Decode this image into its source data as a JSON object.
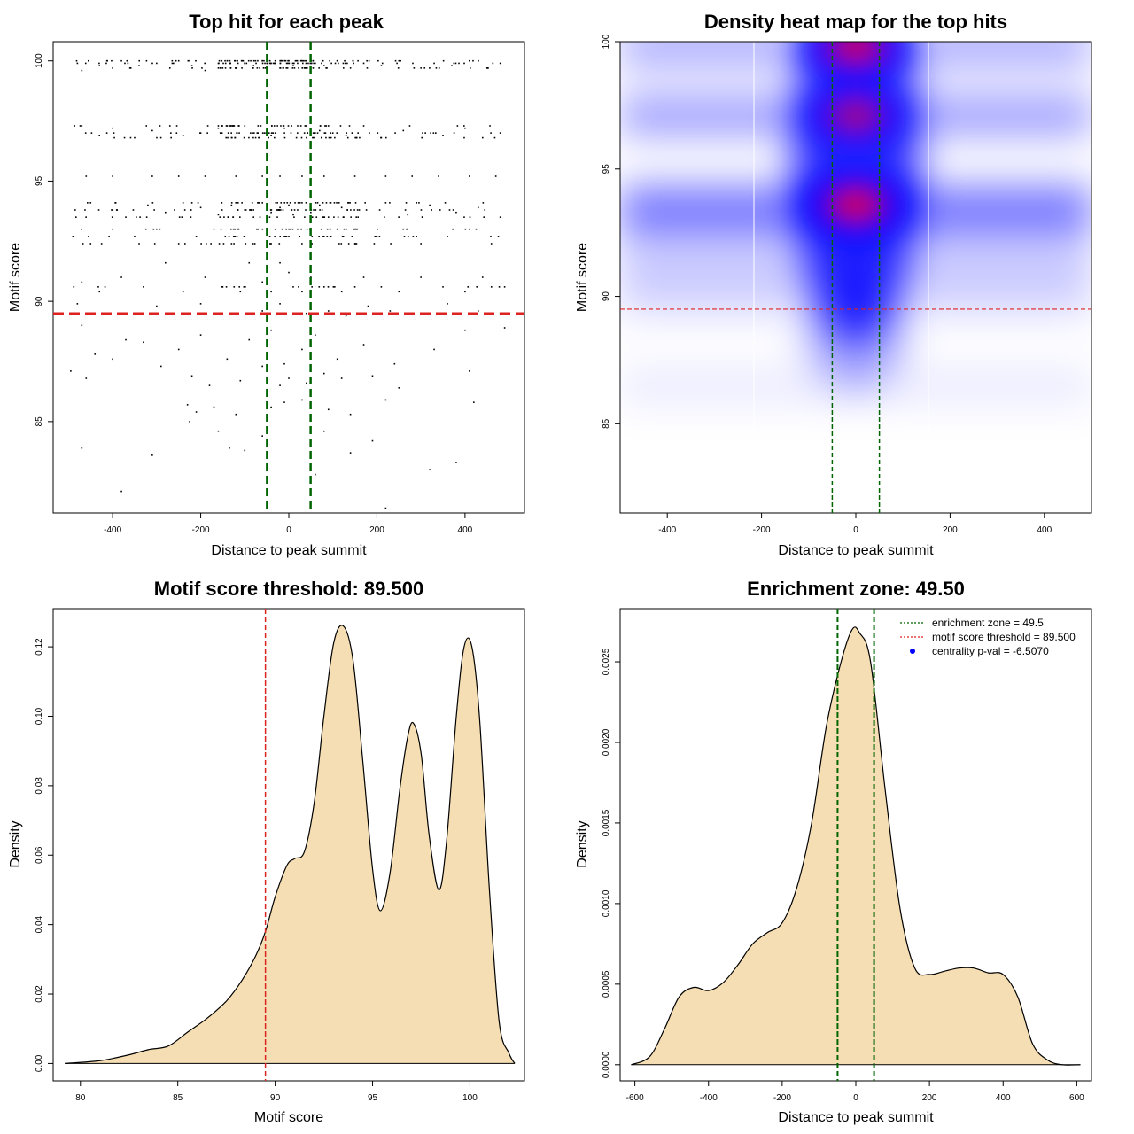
{
  "colors": {
    "green": "#006400",
    "red": "#dd2222",
    "fill": "#f5deb3",
    "points": "#000000",
    "heat_low": "#ffffff",
    "heat_mid": "#0000ff",
    "heat_high": "#ff0000"
  },
  "chart_data": [
    {
      "type": "scatter",
      "title": "Top hit for each peak",
      "xlabel": "Distance to peak summit",
      "ylabel": "Motif score",
      "xlim": [
        -535,
        535
      ],
      "ylim": [
        81.2,
        100.8
      ],
      "xticks": [
        -400,
        -200,
        0,
        200,
        400
      ],
      "xtick_labels": [
        "-400",
        "-200",
        "0",
        "200",
        "400"
      ],
      "yticks": [
        85,
        90,
        95,
        100
      ],
      "ytick_labels": [
        "85",
        "90",
        "95",
        "100"
      ],
      "score_levels": [
        100.0,
        99.7,
        99.9,
        97.3,
        97.0,
        96.8,
        95.2,
        94.1,
        93.8,
        93.5,
        93.0,
        92.7,
        92.4,
        91.6,
        91.0,
        90.6,
        90.4,
        89.9
      ],
      "points": [
        [
          -480,
          99.9
        ],
        [
          -470,
          99.6
        ],
        [
          -455,
          100.0
        ],
        [
          -430,
          99.8
        ],
        [
          -400,
          99.7
        ],
        [
          -380,
          100.0
        ],
        [
          -340,
          99.8
        ],
        [
          -300,
          99.9
        ],
        [
          -270,
          99.7
        ],
        [
          -250,
          100.0
        ],
        [
          -220,
          99.8
        ],
        [
          -190,
          99.6
        ],
        [
          -160,
          99.9
        ],
        [
          -140,
          100.0
        ],
        [
          -120,
          99.7
        ],
        [
          -100,
          99.9
        ],
        [
          -80,
          99.8
        ],
        [
          -60,
          100.0
        ],
        [
          -40,
          99.9
        ],
        [
          -20,
          99.7
        ],
        [
          0,
          100.0
        ],
        [
          10,
          99.8
        ],
        [
          20,
          99.9
        ],
        [
          30,
          100.0
        ],
        [
          40,
          99.7
        ],
        [
          60,
          99.9
        ],
        [
          80,
          99.8
        ],
        [
          110,
          100.0
        ],
        [
          140,
          99.7
        ],
        [
          170,
          99.9
        ],
        [
          210,
          99.8
        ],
        [
          250,
          100.0
        ],
        [
          300,
          99.7
        ],
        [
          330,
          99.9
        ],
        [
          370,
          99.8
        ],
        [
          410,
          100.0
        ],
        [
          450,
          99.7
        ],
        [
          480,
          99.9
        ],
        [
          -470,
          97.3
        ],
        [
          -430,
          96.9
        ],
        [
          -400,
          97.2
        ],
        [
          -350,
          96.8
        ],
        [
          -310,
          97.1
        ],
        [
          -270,
          97.3
        ],
        [
          -240,
          96.9
        ],
        [
          -200,
          97.0
        ],
        [
          -160,
          97.2
        ],
        [
          -130,
          96.8
        ],
        [
          -100,
          97.3
        ],
        [
          -70,
          97.0
        ],
        [
          -40,
          96.9
        ],
        [
          -10,
          97.2
        ],
        [
          20,
          97.3
        ],
        [
          40,
          96.8
        ],
        [
          70,
          97.1
        ],
        [
          100,
          97.0
        ],
        [
          130,
          96.9
        ],
        [
          170,
          97.3
        ],
        [
          210,
          96.8
        ],
        [
          260,
          97.1
        ],
        [
          310,
          97.0
        ],
        [
          350,
          96.9
        ],
        [
          400,
          97.2
        ],
        [
          440,
          96.8
        ],
        [
          480,
          97.0
        ],
        [
          -460,
          95.2
        ],
        [
          -400,
          95.2
        ],
        [
          -310,
          95.2
        ],
        [
          -250,
          95.2
        ],
        [
          -190,
          95.2
        ],
        [
          -120,
          95.2
        ],
        [
          -60,
          95.2
        ],
        [
          -20,
          95.2
        ],
        [
          30,
          95.2
        ],
        [
          80,
          95.2
        ],
        [
          150,
          95.2
        ],
        [
          220,
          95.2
        ],
        [
          280,
          95.2
        ],
        [
          340,
          95.2
        ],
        [
          410,
          95.2
        ],
        [
          470,
          95.2
        ],
        [
          -450,
          94.1
        ],
        [
          -400,
          93.8
        ],
        [
          -370,
          93.5
        ],
        [
          -320,
          94.0
        ],
        [
          -280,
          93.7
        ],
        [
          -240,
          94.1
        ],
        [
          -200,
          93.9
        ],
        [
          -160,
          93.6
        ],
        [
          -130,
          94.0
        ],
        [
          -100,
          93.8
        ],
        [
          -80,
          93.5
        ],
        [
          -60,
          94.1
        ],
        [
          -40,
          93.7
        ],
        [
          -20,
          93.9
        ],
        [
          0,
          94.0
        ],
        [
          10,
          93.6
        ],
        [
          20,
          93.8
        ],
        [
          30,
          94.1
        ],
        [
          50,
          93.7
        ],
        [
          70,
          94.0
        ],
        [
          90,
          93.5
        ],
        [
          120,
          93.9
        ],
        [
          160,
          93.8
        ],
        [
          220,
          94.1
        ],
        [
          270,
          93.6
        ],
        [
          320,
          94.0
        ],
        [
          380,
          93.7
        ],
        [
          430,
          93.9
        ],
        [
          480,
          93.5
        ],
        [
          -490,
          92.7
        ],
        [
          -450,
          92.4
        ],
        [
          -400,
          93.0
        ],
        [
          -350,
          92.7
        ],
        [
          -300,
          93.0
        ],
        [
          -250,
          92.4
        ],
        [
          -210,
          92.7
        ],
        [
          -170,
          93.0
        ],
        [
          -130,
          92.4
        ],
        [
          -100,
          92.7
        ],
        [
          -70,
          93.0
        ],
        [
          -40,
          92.4
        ],
        [
          -10,
          92.7
        ],
        [
          20,
          93.0
        ],
        [
          50,
          92.4
        ],
        [
          80,
          92.7
        ],
        [
          110,
          93.0
        ],
        [
          150,
          92.4
        ],
        [
          200,
          92.7
        ],
        [
          260,
          93.0
        ],
        [
          300,
          92.4
        ],
        [
          360,
          92.7
        ],
        [
          410,
          93.0
        ],
        [
          460,
          92.4
        ],
        [
          -470,
          90.8
        ],
        [
          -430,
          90.4
        ],
        [
          -380,
          91.0
        ],
        [
          -330,
          90.6
        ],
        [
          -280,
          91.6
        ],
        [
          -240,
          90.4
        ],
        [
          -190,
          91.0
        ],
        [
          -150,
          90.6
        ],
        [
          -110,
          90.4
        ],
        [
          -90,
          91.6
        ],
        [
          -60,
          90.8
        ],
        [
          -40,
          90.4
        ],
        [
          -20,
          91.6
        ],
        [
          0,
          91.2
        ],
        [
          10,
          90.6
        ],
        [
          30,
          90.4
        ],
        [
          50,
          91.0
        ],
        [
          80,
          90.6
        ],
        [
          120,
          90.4
        ],
        [
          170,
          91.0
        ],
        [
          210,
          90.6
        ],
        [
          250,
          90.4
        ],
        [
          300,
          91.0
        ],
        [
          350,
          90.6
        ],
        [
          400,
          90.4
        ],
        [
          440,
          91.0
        ],
        [
          490,
          90.6
        ],
        [
          -480,
          89.9
        ],
        [
          -440,
          89.5
        ],
        [
          -300,
          89.8
        ],
        [
          -200,
          89.9
        ],
        [
          -120,
          89.5
        ],
        [
          -60,
          89.6
        ],
        [
          -20,
          89.9
        ],
        [
          40,
          89.5
        ],
        [
          90,
          89.6
        ],
        [
          130,
          89.4
        ],
        [
          180,
          89.8
        ],
        [
          230,
          89.6
        ],
        [
          280,
          89.5
        ],
        [
          360,
          89.9
        ],
        [
          430,
          89.6
        ],
        [
          480,
          89.5
        ],
        [
          -470,
          89.0
        ],
        [
          -440,
          87.8
        ],
        [
          -330,
          88.3
        ],
        [
          -250,
          88.0
        ],
        [
          -200,
          88.6
        ],
        [
          -140,
          87.6
        ],
        [
          -90,
          88.4
        ],
        [
          -40,
          88.8
        ],
        [
          -10,
          87.4
        ],
        [
          30,
          88.0
        ],
        [
          60,
          88.6
        ],
        [
          110,
          87.6
        ],
        [
          170,
          88.2
        ],
        [
          240,
          87.4
        ],
        [
          330,
          88.0
        ],
        [
          400,
          88.8
        ],
        [
          490,
          88.9
        ],
        [
          -495,
          87.1
        ],
        [
          -460,
          86.8
        ],
        [
          -400,
          87.6
        ],
        [
          -370,
          88.4
        ],
        [
          -290,
          87.3
        ],
        [
          -220,
          86.9
        ],
        [
          -180,
          86.5
        ],
        [
          -110,
          86.7
        ],
        [
          -60,
          87.3
        ],
        [
          -20,
          86.5
        ],
        [
          0,
          86.8
        ],
        [
          40,
          86.6
        ],
        [
          80,
          87.0
        ],
        [
          120,
          86.8
        ],
        [
          190,
          86.9
        ],
        [
          250,
          86.4
        ],
        [
          410,
          87.1
        ],
        [
          -230,
          85.7
        ],
        [
          -210,
          85.4
        ],
        [
          -170,
          85.6
        ],
        [
          -120,
          85.3
        ],
        [
          -40,
          85.6
        ],
        [
          -10,
          85.8
        ],
        [
          30,
          85.9
        ],
        [
          90,
          85.5
        ],
        [
          140,
          85.3
        ],
        [
          220,
          85.9
        ],
        [
          420,
          85.8
        ],
        [
          -225,
          85.0
        ],
        [
          -160,
          84.6
        ],
        [
          -60,
          84.4
        ],
        [
          80,
          84.6
        ],
        [
          190,
          84.2
        ],
        [
          -470,
          83.9
        ],
        [
          -135,
          83.9
        ],
        [
          -100,
          83.8
        ],
        [
          -310,
          83.6
        ],
        [
          140,
          83.7
        ],
        [
          320,
          83.0
        ],
        [
          380,
          83.3
        ],
        [
          60,
          82.8
        ],
        [
          -380,
          82.1
        ],
        [
          220,
          81.4
        ]
      ],
      "vlines": [
        -49.5,
        49.5
      ],
      "hlines": [
        89.5
      ]
    },
    {
      "type": "heatmap",
      "title": "Density heat map for the top hits",
      "xlabel": "Distance to peak summit",
      "ylabel": "Motif score",
      "xlim": [
        -500,
        500
      ],
      "ylim": [
        81.5,
        100
      ],
      "xticks": [
        -400,
        -200,
        0,
        200,
        400
      ],
      "xtick_labels": [
        "-400",
        "-200",
        "0",
        "200",
        "400"
      ],
      "yticks": [
        85,
        90,
        95,
        100
      ],
      "ytick_labels": [
        "85",
        "90",
        "95",
        "100"
      ],
      "color_scale": [
        "#ffffff",
        "#0000ff",
        "#ff0000"
      ],
      "hotspots": [
        {
          "x": 0,
          "y": 93.6,
          "intensity": 1.0
        },
        {
          "x": 0,
          "y": 97.1,
          "intensity": 0.75
        },
        {
          "x": 0,
          "y": 99.8,
          "intensity": 0.95
        }
      ],
      "vlines": [
        -50,
        50
      ],
      "hlines": [
        89.5
      ]
    },
    {
      "type": "area",
      "title": "Motif score threshold: 89.500",
      "xlabel": "Motif score",
      "ylabel": "Density",
      "xlim": [
        78.6,
        102.8
      ],
      "ylim": [
        -0.005,
        0.131
      ],
      "xticks": [
        80,
        85,
        90,
        95,
        100
      ],
      "xtick_labels": [
        "80",
        "85",
        "90",
        "95",
        "100"
      ],
      "yticks": [
        0,
        0.02,
        0.04,
        0.06,
        0.08,
        0.1,
        0.12
      ],
      "ytick_labels": [
        "0.00",
        "0.02",
        "0.04",
        "0.06",
        "0.08",
        "0.10",
        "0.12"
      ],
      "x": [
        79.2,
        81.0,
        82.5,
        83.5,
        84.5,
        85.5,
        86.5,
        87.5,
        88.3,
        89.0,
        89.5,
        90.0,
        90.6,
        91.0,
        91.5,
        92.0,
        92.5,
        93.0,
        93.5,
        94.0,
        94.5,
        95.0,
        95.4,
        95.9,
        96.4,
        96.8,
        97.1,
        97.5,
        97.9,
        98.4,
        98.8,
        99.3,
        99.7,
        100.1,
        100.5,
        101.0,
        101.5,
        102.0,
        102.3
      ],
      "y": [
        0.0,
        0.0008,
        0.0025,
        0.004,
        0.005,
        0.009,
        0.013,
        0.018,
        0.024,
        0.031,
        0.038,
        0.048,
        0.057,
        0.059,
        0.061,
        0.075,
        0.1,
        0.121,
        0.126,
        0.116,
        0.087,
        0.056,
        0.044,
        0.055,
        0.079,
        0.094,
        0.098,
        0.089,
        0.066,
        0.05,
        0.064,
        0.1,
        0.12,
        0.12,
        0.099,
        0.05,
        0.012,
        0.003,
        0.0
      ],
      "vlines": [
        89.5
      ]
    },
    {
      "type": "area",
      "title": "Enrichment zone: 49.50",
      "xlabel": "Distance to peak summit",
      "ylabel": "Density",
      "xlim": [
        -640,
        640
      ],
      "ylim": [
        -0.0001,
        0.00283
      ],
      "xticks": [
        -600,
        -400,
        -200,
        0,
        200,
        400,
        600
      ],
      "xtick_labels": [
        "-600",
        "-400",
        "-200",
        "0",
        "200",
        "400",
        "600"
      ],
      "yticks": [
        0,
        0.0005,
        0.001,
        0.0015,
        0.002,
        0.0025
      ],
      "ytick_labels": [
        "0.0000",
        "0.0005",
        "0.0010",
        "0.0015",
        "0.0020",
        "0.0025"
      ],
      "x": [
        -610,
        -560,
        -520,
        -480,
        -440,
        -400,
        -360,
        -320,
        -280,
        -240,
        -200,
        -160,
        -120,
        -80,
        -40,
        -10,
        10,
        40,
        80,
        120,
        160,
        200,
        240,
        280,
        320,
        360,
        400,
        440,
        480,
        520,
        560,
        610
      ],
      "y": [
        0.0,
        5e-05,
        0.00022,
        0.00042,
        0.00048,
        0.00046,
        0.00051,
        0.00062,
        0.00075,
        0.00082,
        0.00088,
        0.0011,
        0.0015,
        0.0021,
        0.0025,
        0.0027,
        0.00268,
        0.0025,
        0.0017,
        0.00097,
        0.0006,
        0.00056,
        0.00058,
        0.0006,
        0.0006,
        0.00057,
        0.00056,
        0.00042,
        0.00013,
        3e-05,
        0.0,
        0.0
      ],
      "vlines": [
        -49.5,
        49.5
      ],
      "legend": {
        "position": "top-right",
        "entries": [
          {
            "label": "enrichment zone = 49.5",
            "color": "#006400",
            "style": "dotted-line"
          },
          {
            "label": "motif score threshold = 89.500",
            "color": "#dd2222",
            "style": "dotted-line"
          },
          {
            "label": "centrality p-val = -6.5070",
            "color": "#0000ff",
            "style": "point"
          }
        ]
      }
    }
  ]
}
